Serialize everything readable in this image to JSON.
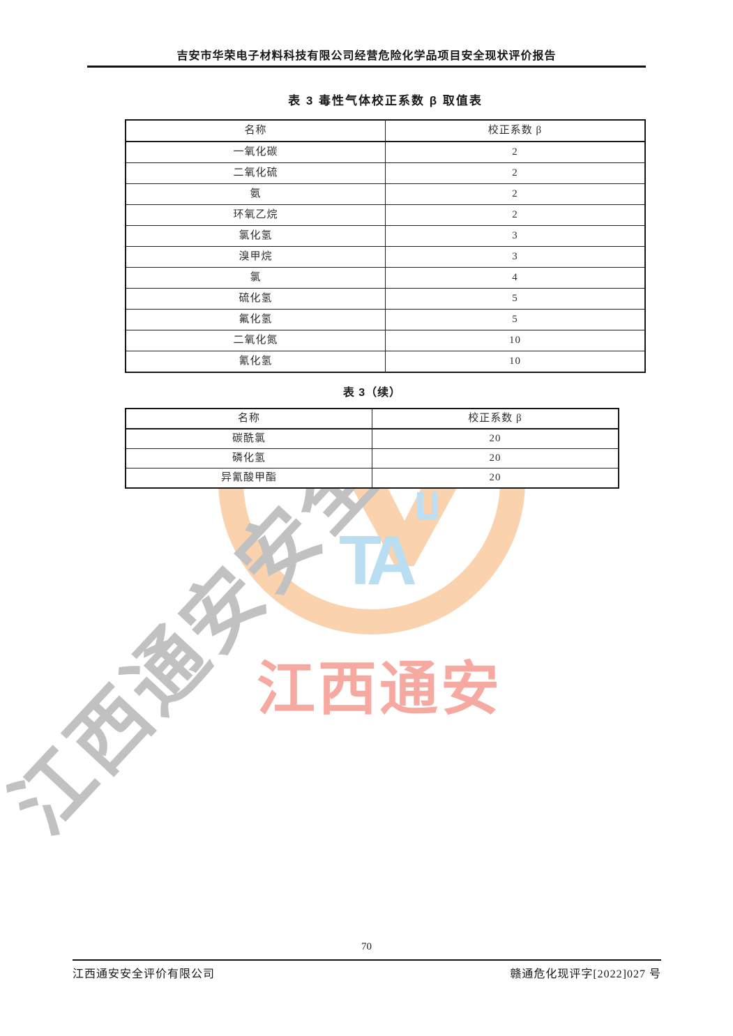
{
  "header": {
    "title": "吉安市华荣电子材料科技有限公司经营危险化学品项目安全现状评价报告"
  },
  "tables": [
    {
      "title": "表 3  毒性气体校正系数 β 取值表",
      "columns": [
        "名称",
        "校正系数 β"
      ],
      "rows": [
        [
          "一氧化碳",
          "2"
        ],
        [
          "二氧化硫",
          "2"
        ],
        [
          "氨",
          "2"
        ],
        [
          "环氧乙烷",
          "2"
        ],
        [
          "氯化氢",
          "3"
        ],
        [
          "溴甲烷",
          "3"
        ],
        [
          "氯",
          "4"
        ],
        [
          "硫化氢",
          "5"
        ],
        [
          "氟化氢",
          "5"
        ],
        [
          "二氧化氮",
          "10"
        ],
        [
          "氰化氢",
          "10"
        ]
      ]
    },
    {
      "title": "表 3（续）",
      "columns": [
        "名称",
        "校正系数 β"
      ],
      "rows": [
        [
          "碳酰氯",
          "20"
        ],
        [
          "磷化氢",
          "20"
        ],
        [
          "异氰酸甲酯",
          "20"
        ]
      ]
    }
  ],
  "watermark": {
    "diagonal_text": "江西通安安全评价",
    "logo_letters": "TA",
    "red_text": "江西通安",
    "colors": {
      "orange": "#fbd2ae",
      "blue": "#b9ddf1",
      "red": "#f6a9a0",
      "gray": "#c2c1c1"
    }
  },
  "footer": {
    "page_number": "70",
    "left": "江西通安安全评价有限公司",
    "right": "赣通危化现评字[2022]027 号"
  }
}
